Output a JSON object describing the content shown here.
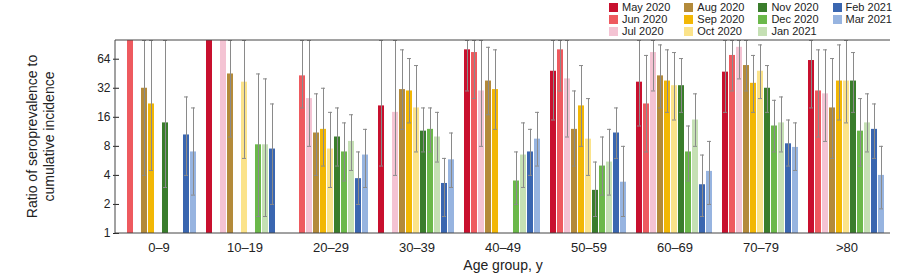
{
  "chart_data": {
    "type": "bar",
    "xlabel": "Age group, y",
    "ylabel": "Ratio of seroprevalence to cumulative incidence",
    "categories": [
      "0–9",
      "10–19",
      "20–29",
      "30–39",
      "40–49",
      "50–59",
      "60–69",
      "70–79",
      ">80"
    ],
    "log": "y",
    "ylim": [
      1,
      100
    ],
    "yticks": [
      1,
      2,
      4,
      8,
      16,
      32,
      64
    ],
    "grid": false,
    "legend": "top-right",
    "series": [
      {
        "name": "May 2020",
        "color": "#c8102e",
        "values": [
          null,
          100,
          null,
          21,
          80,
          48,
          37,
          47,
          62
        ],
        "error_low": [
          null,
          null,
          null,
          5,
          30,
          15,
          13,
          18,
          20
        ],
        "error_high": [
          null,
          null,
          null,
          100,
          100,
          100,
          100,
          100,
          100
        ]
      },
      {
        "name": "Jun 2020",
        "color": "#ee5a5f",
        "values": [
          100,
          null,
          43,
          null,
          75,
          80,
          22,
          70,
          30
        ],
        "error_low": [
          null,
          null,
          20,
          null,
          25,
          30,
          7,
          30,
          10
        ],
        "error_high": [
          null,
          null,
          100,
          null,
          100,
          100,
          70,
          100,
          80
        ]
      },
      {
        "name": "Jul 2020",
        "color": "#f4c3d3",
        "values": [
          null,
          100,
          25,
          18,
          30,
          40,
          75,
          85,
          28
        ],
        "error_low": [
          null,
          null,
          8,
          4,
          8,
          10,
          30,
          40,
          9
        ],
        "error_high": [
          null,
          null,
          100,
          100,
          100,
          100,
          100,
          100,
          80
        ]
      },
      {
        "name": "Aug 2020",
        "color": "#b38a3a",
        "values": [
          32,
          45,
          11,
          31,
          38,
          12,
          43,
          55,
          20
        ],
        "error_low": [
          4,
          10,
          4,
          12,
          17,
          5,
          20,
          30,
          6
        ],
        "error_high": [
          100,
          100,
          28,
          80,
          85,
          30,
          90,
          100,
          65
        ]
      },
      {
        "name": "Sep 2020",
        "color": "#f2b705",
        "values": [
          22,
          null,
          12,
          30,
          31,
          21,
          38,
          36,
          38
        ],
        "error_low": [
          4.5,
          null,
          5,
          14,
          12,
          8,
          18,
          18,
          15
        ],
        "error_high": [
          100,
          null,
          32,
          65,
          80,
          55,
          80,
          70,
          90
        ]
      },
      {
        "name": "Oct 2020",
        "color": "#fbe38a",
        "values": [
          null,
          37,
          7.5,
          20,
          null,
          9.5,
          34,
          48,
          38
        ],
        "error_low": [
          null,
          6,
          3,
          7,
          null,
          4,
          15,
          25,
          14
        ],
        "error_high": [
          null,
          100,
          18,
          55,
          null,
          25,
          75,
          90,
          100
        ]
      },
      {
        "name": "Nov 2020",
        "color": "#3a7d2c",
        "values": [
          14,
          null,
          10,
          11.5,
          null,
          2.8,
          34,
          32,
          38
        ],
        "error_low": [
          3,
          null,
          5,
          7,
          null,
          1.5,
          18,
          18,
          18
        ],
        "error_high": [
          100,
          null,
          20,
          20,
          null,
          5.5,
          65,
          55,
          75
        ]
      },
      {
        "name": "Dec 2020",
        "color": "#6bb84a",
        "values": [
          null,
          8.3,
          7,
          12,
          3.5,
          5,
          7,
          13,
          11.5
        ],
        "error_low": [
          null,
          1.5,
          3.5,
          7,
          2,
          2.5,
          3.5,
          7,
          5
        ],
        "error_high": [
          null,
          45,
          14,
          20,
          7,
          10,
          13,
          24,
          25
        ]
      },
      {
        "name": "Jan 2021",
        "color": "#c5e0b4",
        "values": [
          null,
          8.3,
          9,
          10,
          6.5,
          5.5,
          15,
          14,
          14
        ],
        "error_low": [
          null,
          1.5,
          4.5,
          5.5,
          3,
          2.5,
          8,
          7,
          7
        ],
        "error_high": [
          null,
          40,
          17,
          18,
          14,
          12,
          28,
          26,
          28
        ]
      },
      {
        "name": "Feb 2021",
        "color": "#3a66b0",
        "values": [
          10.5,
          7.5,
          3.7,
          3.3,
          7,
          11,
          3.2,
          8.5,
          12
        ],
        "error_low": [
          4,
          2,
          2,
          1.5,
          4,
          6,
          1.5,
          5,
          6
        ],
        "error_high": [
          26,
          22,
          7,
          6,
          12,
          20,
          6.5,
          15,
          22
        ]
      },
      {
        "name": "Mar 2021",
        "color": "#97b4e0",
        "values": [
          7,
          null,
          6.5,
          5.8,
          9.5,
          3.4,
          4.4,
          7.8,
          4
        ],
        "error_low": [
          2.5,
          null,
          3,
          3,
          5,
          1.5,
          2,
          4.5,
          1.8
        ],
        "error_high": [
          20,
          null,
          12,
          11,
          18,
          8,
          9,
          14,
          8
        ]
      }
    ]
  }
}
